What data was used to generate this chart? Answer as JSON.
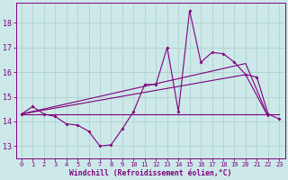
{
  "title": "",
  "xlabel": "Windchill (Refroidissement éolien,°C)",
  "bg_color": "#cce8e8",
  "line_color": "#800080",
  "grid_color": "#aacccc",
  "x_ticks": [
    0,
    1,
    2,
    3,
    4,
    5,
    6,
    7,
    8,
    9,
    10,
    11,
    12,
    13,
    14,
    15,
    16,
    17,
    18,
    19,
    20,
    21,
    22,
    23
  ],
  "y_ticks": [
    13,
    14,
    15,
    16,
    17,
    18
  ],
  "ylim": [
    12.5,
    18.8
  ],
  "xlim": [
    -0.5,
    23.5
  ],
  "data_line": [
    14.3,
    14.6,
    14.3,
    14.2,
    13.9,
    13.85,
    13.6,
    13.0,
    13.05,
    13.7,
    14.4,
    15.5,
    15.5,
    17.0,
    14.4,
    18.5,
    16.4,
    16.8,
    16.75,
    16.4,
    15.9,
    15.8,
    14.3,
    14.1
  ],
  "flat_line_x": [
    0,
    23
  ],
  "flat_line_y": [
    14.3,
    14.3
  ],
  "trend1_x": [
    0,
    20,
    22
  ],
  "trend1_y": [
    14.3,
    16.35,
    14.2
  ],
  "trend2_x": [
    0,
    20,
    22
  ],
  "trend2_y": [
    14.3,
    15.9,
    14.2
  ]
}
